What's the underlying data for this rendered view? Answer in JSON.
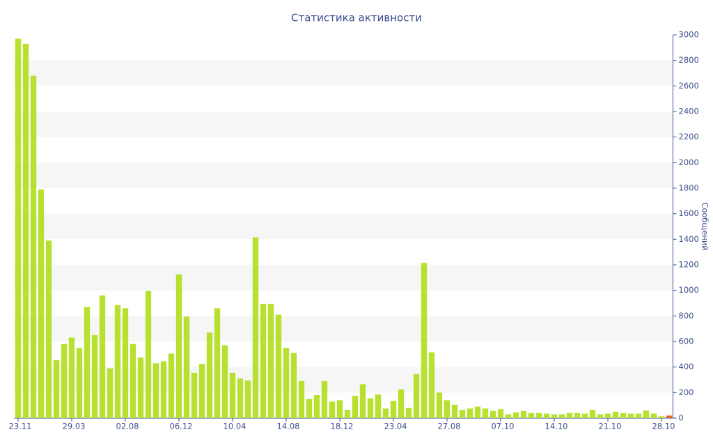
{
  "chart_data": {
    "type": "bar",
    "title": "Статистика активности",
    "y_axis_label": "Сообщений",
    "categories": [
      "23.11",
      null,
      null,
      null,
      null,
      null,
      null,
      "29.03",
      null,
      null,
      null,
      null,
      null,
      null,
      "02.08",
      null,
      null,
      null,
      null,
      null,
      null,
      "06.12",
      null,
      null,
      null,
      null,
      null,
      null,
      "10.04",
      null,
      null,
      null,
      null,
      null,
      null,
      "14.08",
      null,
      null,
      null,
      null,
      null,
      null,
      "18.12",
      null,
      null,
      null,
      null,
      null,
      null,
      "23.04",
      null,
      null,
      null,
      null,
      null,
      null,
      "27.08",
      null,
      null,
      null,
      null,
      null,
      null,
      "07.10",
      null,
      null,
      null,
      null,
      null,
      null,
      "14.10",
      null,
      null,
      null,
      null,
      null,
      null,
      "21.10",
      null,
      null,
      null,
      null,
      null,
      null,
      "28.10",
      null
    ],
    "values": [
      2970,
      2930,
      2680,
      1790,
      1390,
      455,
      580,
      630,
      550,
      870,
      650,
      960,
      390,
      885,
      860,
      580,
      475,
      995,
      430,
      445,
      505,
      1125,
      795,
      355,
      425,
      670,
      860,
      570,
      355,
      310,
      295,
      1415,
      895,
      895,
      810,
      550,
      510,
      290,
      150,
      180,
      290,
      130,
      140,
      65,
      175,
      265,
      155,
      185,
      75,
      135,
      225,
      80,
      345,
      1215,
      515,
      200,
      140,
      105,
      65,
      75,
      90,
      75,
      55,
      70,
      30,
      45,
      55,
      40,
      40,
      35,
      30,
      30,
      40,
      40,
      35,
      65,
      30,
      35,
      50,
      40,
      35,
      35,
      60,
      35,
      15,
      20
    ],
    "color": "#b8e02f",
    "last_color": "#e0662e",
    "ylim": [
      0,
      3000
    ],
    "yticks": [
      0,
      200,
      400,
      600,
      800,
      1000,
      1200,
      1400,
      1600,
      1800,
      2000,
      2200,
      2400,
      2600,
      2800,
      3000
    ],
    "y_axis_side": "right",
    "grid": "bands"
  }
}
